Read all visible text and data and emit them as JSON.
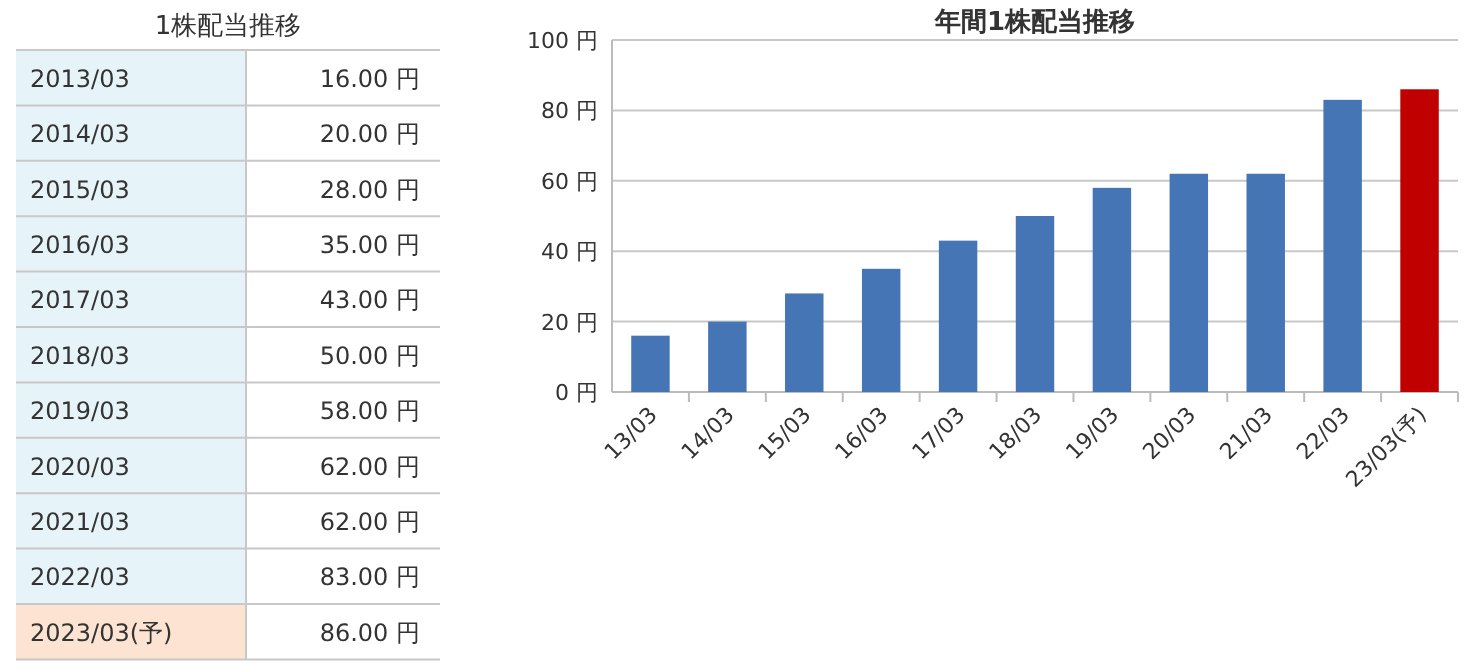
{
  "chart_data": [
    {
      "type": "other",
      "title": "1株配当推移",
      "categories": [
        "2013/03",
        "2014/03",
        "2015/03",
        "2016/03",
        "2017/03",
        "2018/03",
        "2019/03",
        "2020/03",
        "2021/03",
        "2022/03",
        "2023/03(予)"
      ],
      "values": [
        16,
        20,
        28,
        35,
        43,
        50,
        58,
        62,
        62,
        83,
        86
      ],
      "value_labels": [
        "16.00 円",
        "20.00 円",
        "28.00 円",
        "35.00 円",
        "43.00 円",
        "50.00 円",
        "58.00 円",
        "62.00 円",
        "62.00 円",
        "83.00 円",
        "86.00 円"
      ],
      "colors": [
        "#e6f3f8",
        "#e6f3f8",
        "#e6f3f8",
        "#e6f3f8",
        "#e6f3f8",
        "#e6f3f8",
        "#e6f3f8",
        "#e6f3f8",
        "#e6f3f8",
        "#e6f3f8",
        "#fde4d2"
      ]
    },
    {
      "type": "bar",
      "title": "年間1株配当推移",
      "categories": [
        "13/03",
        "14/03",
        "15/03",
        "16/03",
        "17/03",
        "18/03",
        "19/03",
        "20/03",
        "21/03",
        "22/03",
        "23/03(予)"
      ],
      "values": [
        16,
        20,
        28,
        35,
        43,
        50,
        58,
        62,
        62,
        83,
        86
      ],
      "colors": [
        "#4675b6",
        "#4675b6",
        "#4675b6",
        "#4675b6",
        "#4675b6",
        "#4675b6",
        "#4675b6",
        "#4675b6",
        "#4675b6",
        "#4675b6",
        "#c00000"
      ],
      "ylim": [
        0,
        100
      ],
      "yticks": [
        {
          "value": 0,
          "label": "0 円"
        },
        {
          "value": 20,
          "label": "20 円"
        },
        {
          "value": 40,
          "label": "40 円"
        },
        {
          "value": 60,
          "label": "60 円"
        },
        {
          "value": 80,
          "label": "80 円"
        },
        {
          "value": 100,
          "label": "100 円"
        }
      ],
      "grid": "y"
    }
  ]
}
